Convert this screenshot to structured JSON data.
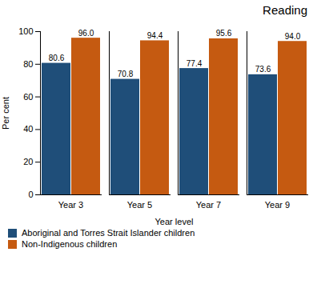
{
  "chart_data": {
    "type": "bar",
    "title": "Reading",
    "xlabel": "Year level",
    "ylabel": "Per cent",
    "categories": [
      "Year 3",
      "Year 5",
      "Year 7",
      "Year 9"
    ],
    "series": [
      {
        "name": "Aboriginal and Torres Strait Islander children",
        "color": "#1F4E79",
        "values": [
          80.6,
          70.8,
          77.4,
          73.6
        ],
        "value_labels": [
          "80.6",
          "70.8",
          "77.4",
          "73.6"
        ]
      },
      {
        "name": "Non-Indigenous children",
        "color": "#C55A11",
        "values": [
          96.0,
          94.4,
          95.6,
          94.0
        ],
        "value_labels": [
          "96.0",
          "94.4",
          "95.6",
          "94.0"
        ]
      }
    ],
    "ylim": [
      0,
      100
    ],
    "yticks": [
      0,
      20,
      40,
      60,
      80,
      100
    ],
    "data_labels": true,
    "legend": "bottom"
  }
}
